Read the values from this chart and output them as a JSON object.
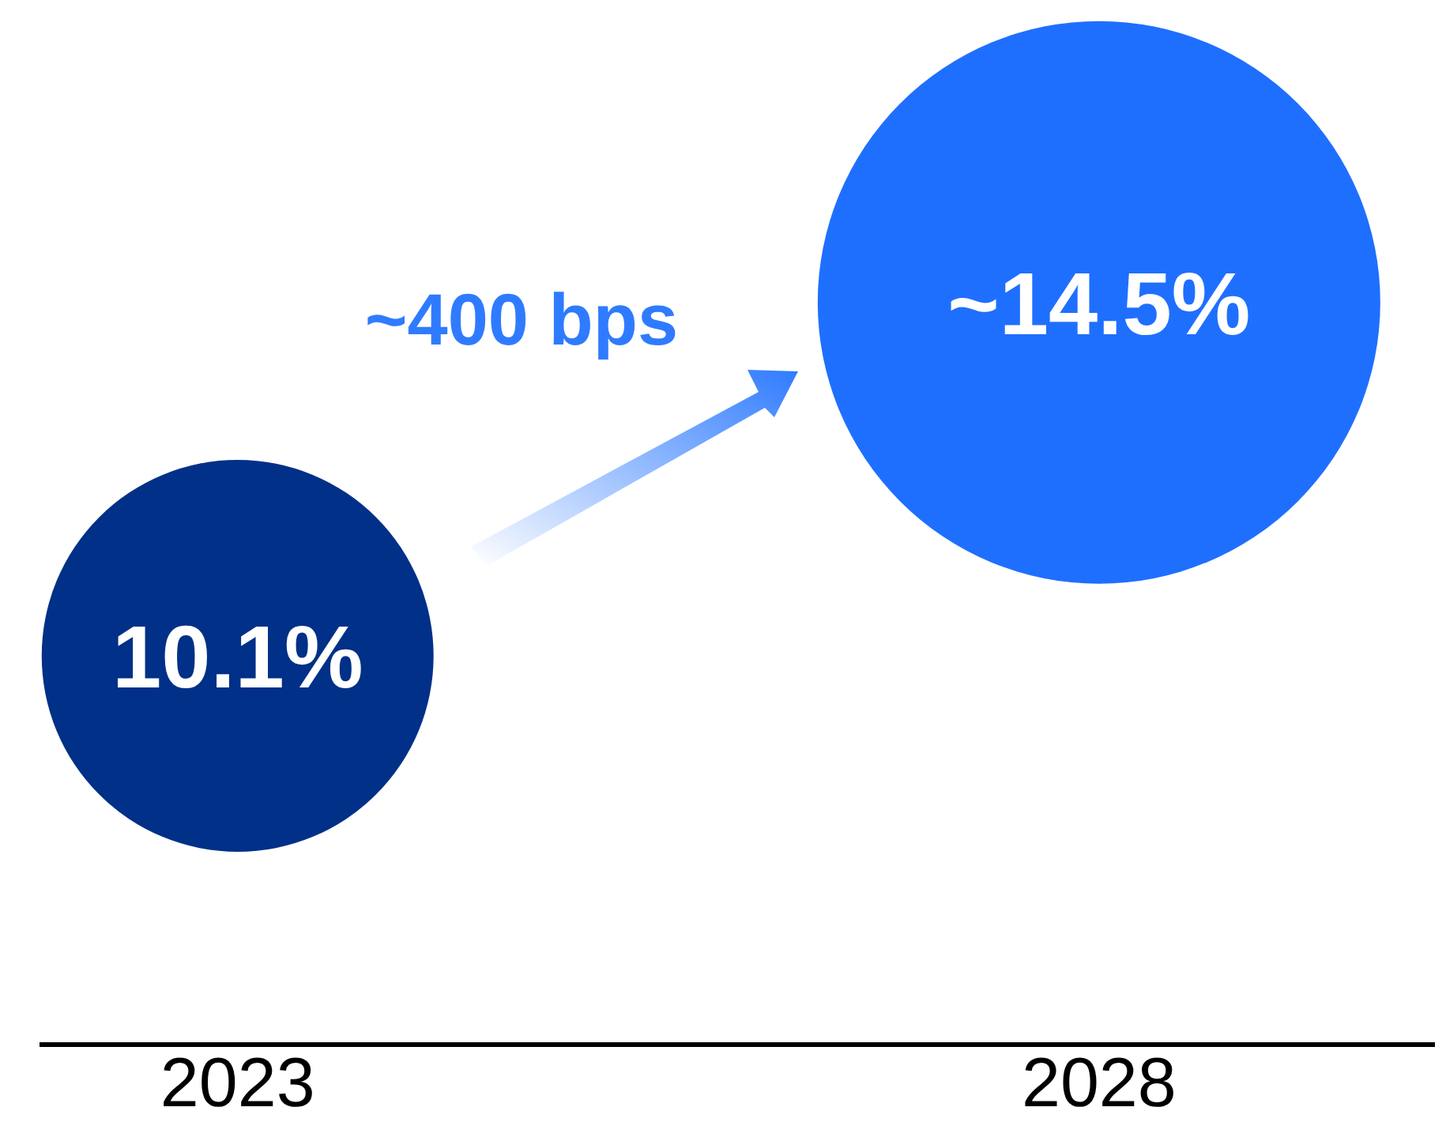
{
  "chart_data": {
    "type": "other",
    "categories": [
      "2023",
      "2028"
    ],
    "values": [
      10.1,
      14.5
    ],
    "colors": [
      "#003087",
      "#1f6fff"
    ],
    "value_labels": [
      "10.1%",
      "~14.5%"
    ],
    "annotations": [
      "~400 bps"
    ]
  }
}
